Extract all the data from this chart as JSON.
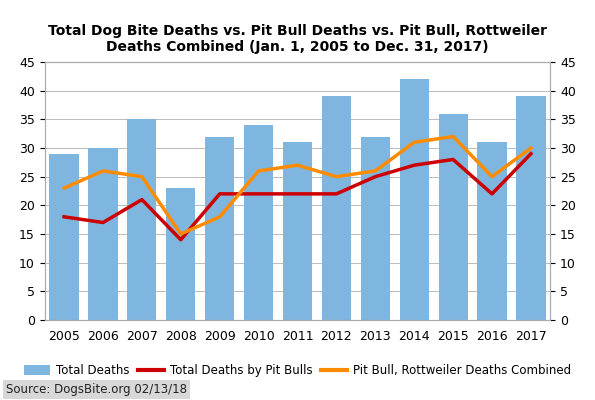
{
  "years": [
    2005,
    2006,
    2007,
    2008,
    2009,
    2010,
    2011,
    2012,
    2013,
    2014,
    2015,
    2016,
    2017
  ],
  "total_deaths": [
    29,
    30,
    35,
    23,
    32,
    34,
    31,
    39,
    32,
    42,
    36,
    31,
    39
  ],
  "pit_bull_deaths": [
    18,
    17,
    21,
    14,
    22,
    22,
    22,
    22,
    25,
    27,
    28,
    22,
    29
  ],
  "pit_rottweiler_combined": [
    23,
    26,
    25,
    15,
    18,
    26,
    27,
    25,
    26,
    31,
    32,
    25,
    30
  ],
  "bar_color": "#7EB6E0",
  "pit_bull_color": "#CC0000",
  "combined_color": "#FF8C00",
  "title_line1": "Total Dog Bite Deaths vs. Pit Bull Deaths vs. Pit Bull, Rottweiler",
  "title_line2": "Deaths Combined (Jan. 1, 2005 to Dec. 31, 2017)",
  "ylim": [
    0,
    45
  ],
  "yticks": [
    0,
    5,
    10,
    15,
    20,
    25,
    30,
    35,
    40,
    45
  ],
  "legend_bar_label": "Total Deaths",
  "legend_red_label": "Total Deaths by Pit Bulls",
  "legend_orange_label": "Pit Bull, Rottweiler Deaths Combined",
  "source_text": "Source: DogsBite.org 02/13/18",
  "background_color": "#FFFFFF",
  "plot_bg_color": "#FFFFFF",
  "grid_color": "#BBBBBB",
  "line_width": 2.5,
  "bar_width": 0.75,
  "tick_fontsize": 9,
  "title_fontsize": 10,
  "legend_fontsize": 8.5
}
